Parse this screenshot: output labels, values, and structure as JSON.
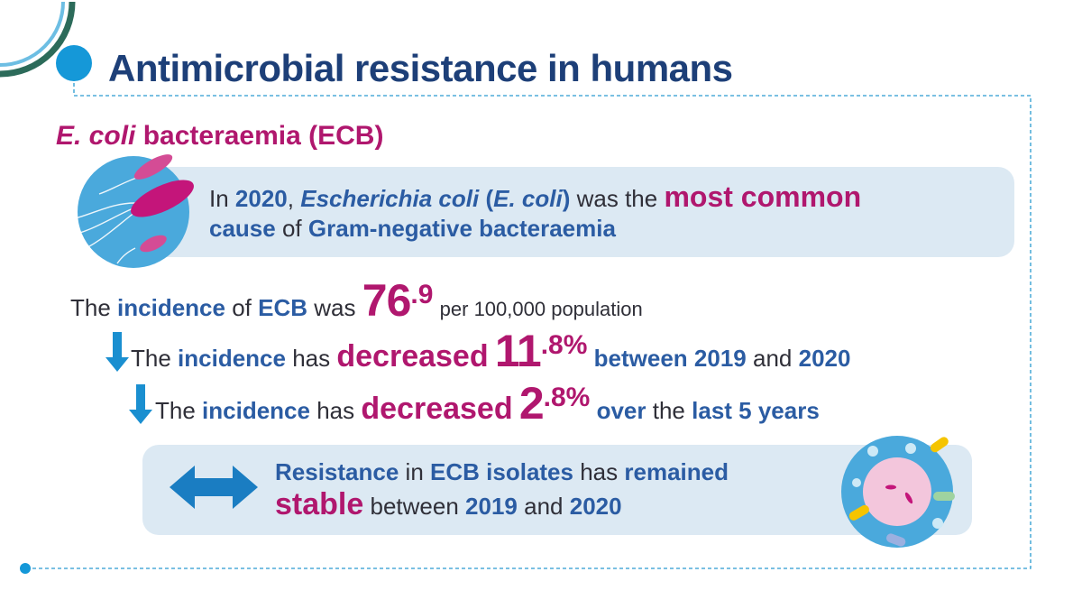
{
  "header": {
    "title": "Antimicrobial resistance in humans",
    "subtitle": [
      "E. coli",
      "bacteraemia (ECB)"
    ]
  },
  "intro": [
    "In",
    "2020",
    ",",
    "Escherichia coli",
    "(",
    "E. coli",
    ")",
    "was the",
    "most common",
    "cause",
    "of",
    "Gram-negative bacteraemia"
  ],
  "incidence": [
    "The",
    "incidence",
    "of",
    "ECB",
    "was",
    "76",
    ".9",
    "per 100,000 population"
  ],
  "change_year": [
    "The",
    "incidence",
    "has",
    "decreased",
    "11",
    ".8%",
    "between",
    "2019",
    "and",
    "2020"
  ],
  "change_5yr": [
    "The",
    "incidence",
    "has",
    "decreased",
    "2",
    ".8%",
    "over",
    "the",
    "last 5 years"
  ],
  "resistance": [
    "Resistance",
    "in",
    "ECB isolates",
    "has",
    "remained",
    "stable",
    "between",
    "2019",
    "and",
    "2020"
  ]
}
